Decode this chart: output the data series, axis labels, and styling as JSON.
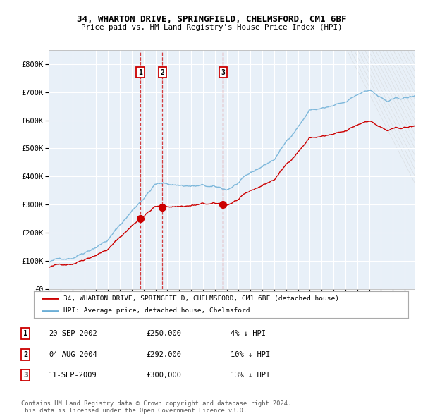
{
  "title1": "34, WHARTON DRIVE, SPRINGFIELD, CHELMSFORD, CM1 6BF",
  "title2": "Price paid vs. HM Land Registry's House Price Index (HPI)",
  "ylabel_ticks": [
    "£0",
    "£100K",
    "£200K",
    "£300K",
    "£400K",
    "£500K",
    "£600K",
    "£700K",
    "£800K"
  ],
  "ytick_vals": [
    0,
    100000,
    200000,
    300000,
    400000,
    500000,
    600000,
    700000,
    800000
  ],
  "ylim": [
    0,
    850000
  ],
  "start_year": 1995.0,
  "end_year": 2025.83,
  "bg_color": "#ffffff",
  "plot_bg_color": "#e8f0f8",
  "grid_color": "#ffffff",
  "hpi_color": "#6baed6",
  "price_color": "#cc0000",
  "sale1_date": 2002.72,
  "sale1_price": 250000,
  "sale2_date": 2004.58,
  "sale2_price": 292000,
  "sale3_date": 2009.69,
  "sale3_price": 300000,
  "legend_line1": "34, WHARTON DRIVE, SPRINGFIELD, CHELMSFORD, CM1 6BF (detached house)",
  "legend_line2": "HPI: Average price, detached house, Chelmsford",
  "table_rows": [
    [
      "1",
      "20-SEP-2002",
      "£250,000",
      "4% ↓ HPI"
    ],
    [
      "2",
      "04-AUG-2004",
      "£292,000",
      "10% ↓ HPI"
    ],
    [
      "3",
      "11-SEP-2009",
      "£300,000",
      "13% ↓ HPI"
    ]
  ],
  "footer": "Contains HM Land Registry data © Crown copyright and database right 2024.\nThis data is licensed under the Open Government Licence v3.0."
}
